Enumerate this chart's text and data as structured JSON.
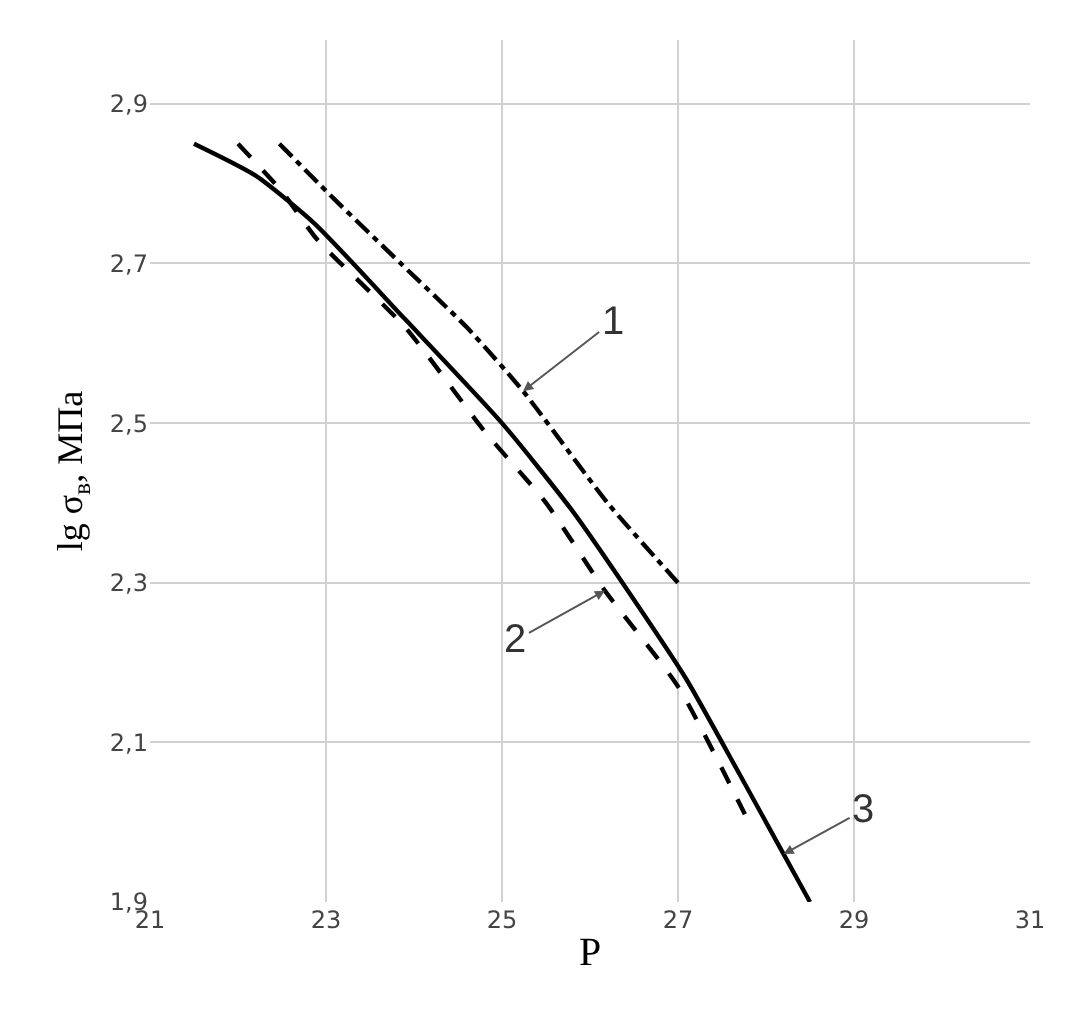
{
  "chart_data": {
    "type": "line",
    "xlabel": "P",
    "ylabel": "lg σ$_{в}$, МПа",
    "series": [
      {
        "color": "#000000",
        "line_style": "dashdot",
        "x": [
          22.47,
          23.1,
          23.85,
          24.6,
          25.24,
          26.2,
          27.0
        ],
        "values": [
          2.85,
          2.78,
          2.7,
          2.62,
          2.54,
          2.4,
          2.3
        ]
      },
      {
        "color": "#000000",
        "line_style": "dashed",
        "x": [
          22.0,
          22.5,
          22.9,
          23.9,
          24.8,
          25.5,
          26.17,
          27.0,
          27.76
        ],
        "values": [
          2.85,
          2.79,
          2.73,
          2.62,
          2.49,
          2.4,
          2.29,
          2.17,
          2.01
        ]
      },
      {
        "color": "#000000",
        "line_style": "solid",
        "x": [
          21.5,
          22.2,
          22.87,
          23.9,
          25.0,
          25.8,
          26.43,
          27.09,
          27.7,
          28.2,
          28.5
        ],
        "values": [
          2.85,
          2.81,
          2.75,
          2.63,
          2.5,
          2.39,
          2.29,
          2.18,
          2.06,
          1.96,
          1.9
        ]
      }
    ],
    "annotations": [
      {
        "text": "1",
        "x": 25.24,
        "y": 2.54
      },
      {
        "text": "2",
        "x": 26.17,
        "y": 2.29
      },
      {
        "text": "3",
        "x": 28.2,
        "y": 1.96
      }
    ],
    "xlim": [
      21,
      31
    ],
    "xticks": [
      21,
      23,
      25,
      27,
      29,
      31
    ],
    "ylim": [
      1.9,
      2.98
    ],
    "yticks": [
      {
        "value": 1.9,
        "label": "1,9"
      },
      {
        "value": 2.1,
        "label": "2,1"
      },
      {
        "value": 2.3,
        "label": "2,3"
      },
      {
        "value": 2.5,
        "label": "2,5"
      },
      {
        "value": 2.7,
        "label": "2,7"
      },
      {
        "value": 2.9,
        "label": "2,9"
      }
    ],
    "grid": true,
    "marker": "none"
  }
}
